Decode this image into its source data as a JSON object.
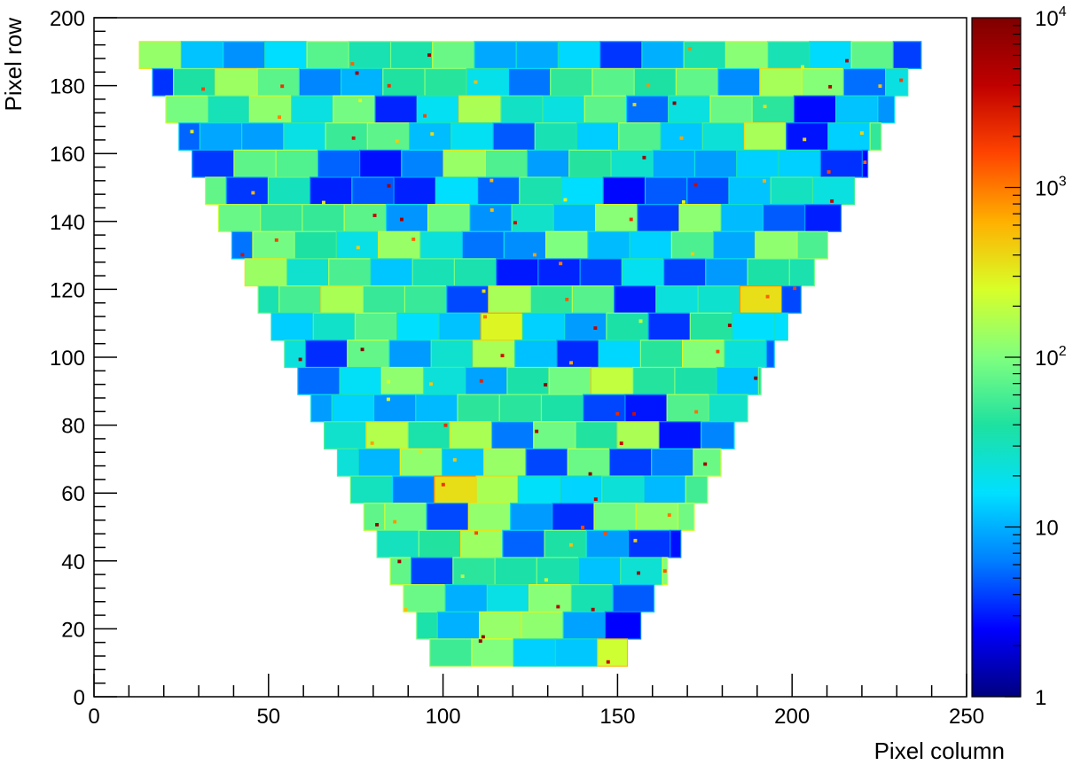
{
  "chart_data": {
    "type": "heatmap",
    "title": "",
    "xlabel": "Pixel column",
    "ylabel": "Pixel row",
    "xlim": [
      0,
      250
    ],
    "ylim": [
      0,
      200
    ],
    "x_major_ticks": [
      0,
      50,
      100,
      150,
      200,
      250
    ],
    "y_major_ticks": [
      0,
      20,
      40,
      60,
      80,
      100,
      120,
      140,
      160,
      180,
      200
    ],
    "x_tick_labels": [
      "0",
      "50",
      "100",
      "150",
      "200",
      "250"
    ],
    "y_tick_labels": [
      "0",
      "20",
      "40",
      "60",
      "80",
      "100",
      "120",
      "140",
      "160",
      "180",
      "200"
    ],
    "colorbar": {
      "scale": "log",
      "range": [
        1,
        10000
      ],
      "tick_labels": [
        {
          "value": 1,
          "base": "1",
          "exp": ""
        },
        {
          "value": 10,
          "base": "10",
          "exp": ""
        },
        {
          "value": 100,
          "base": "10",
          "exp": "2"
        },
        {
          "value": 1000,
          "base": "10",
          "exp": "3"
        },
        {
          "value": 10000,
          "base": "10",
          "exp": "4"
        }
      ],
      "colormap": [
        "#00007f",
        "#0000ff",
        "#007fff",
        "#00e0ff",
        "#1ee1a0",
        "#7fff7f",
        "#d8ff28",
        "#ffb000",
        "#ff4400",
        "#c00000",
        "#7f0000"
      ]
    },
    "detector_region": {
      "shape": "inverted-trapezoid",
      "top_row": 193,
      "bottom_row": 9,
      "top_columns": [
        13,
        237
      ],
      "bottom_columns": [
        100,
        149
      ],
      "row_band_height": 8,
      "cell_width": 12
    },
    "grid": false
  }
}
